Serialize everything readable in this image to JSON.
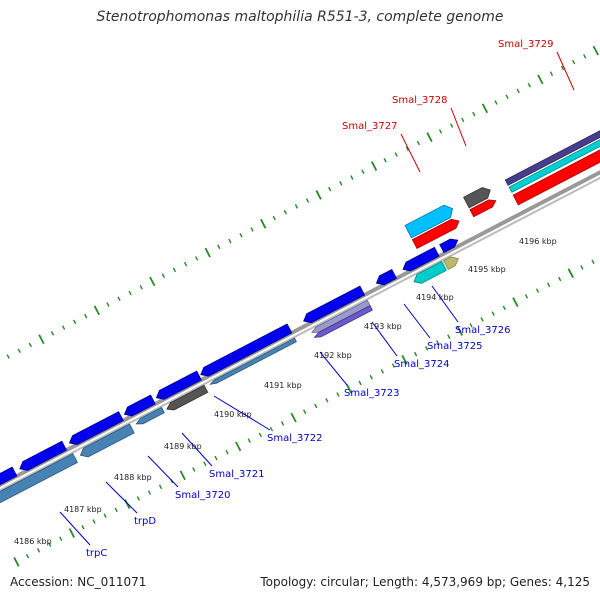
{
  "title": "Stenotrophomonas maltophilia R551-3, complete genome",
  "footer": {
    "accession": "Accession: NC_011071",
    "summary": "Topology: circular; Length: 4,573,969 bp; Genes: 4,125"
  },
  "colors": {
    "backbone": "#8c8c8c",
    "tick": "#228b22",
    "label_forward": "#cc0000",
    "label_reverse": "#0000cc"
  },
  "tick_labels": [
    {
      "label": "4186 kbp"
    },
    {
      "label": "4187 kbp"
    },
    {
      "label": "4188 kbp"
    },
    {
      "label": "4189 kbp"
    },
    {
      "label": "4190 kbp"
    },
    {
      "label": "4191 kbp"
    },
    {
      "label": "4192 kbp"
    },
    {
      "label": "4193 kbp"
    },
    {
      "label": "4194 kbp"
    },
    {
      "label": "4195 kbp"
    },
    {
      "label": "4196 kbp"
    }
  ],
  "genes": [
    {
      "name": "Smal_3727",
      "strand": "+",
      "color": "#00bfff"
    },
    {
      "name": "Smal_3728",
      "strand": "+",
      "color": "#555555"
    },
    {
      "name": "Smal_3729",
      "strand": "+",
      "color": "#483d8b"
    },
    {
      "name": "trpC",
      "strand": "-",
      "color": "#0000ee"
    },
    {
      "name": "trpD",
      "strand": "-",
      "color": "#0000ee"
    },
    {
      "name": "Smal_3720",
      "strand": "-",
      "color": "#0000ee"
    },
    {
      "name": "Smal_3721",
      "strand": "-",
      "color": "#555555"
    },
    {
      "name": "Smal_3722",
      "strand": "-",
      "color": "#0000ee"
    },
    {
      "name": "Smal_3723",
      "strand": "-",
      "color": "#0000ee"
    },
    {
      "name": "Smal_3724",
      "strand": "-",
      "color": "#0000ee"
    },
    {
      "name": "Smal_3725",
      "strand": "-",
      "color": "#00cccc"
    },
    {
      "name": "Smal_3726",
      "strand": "-",
      "color": "#bdb76b"
    }
  ]
}
